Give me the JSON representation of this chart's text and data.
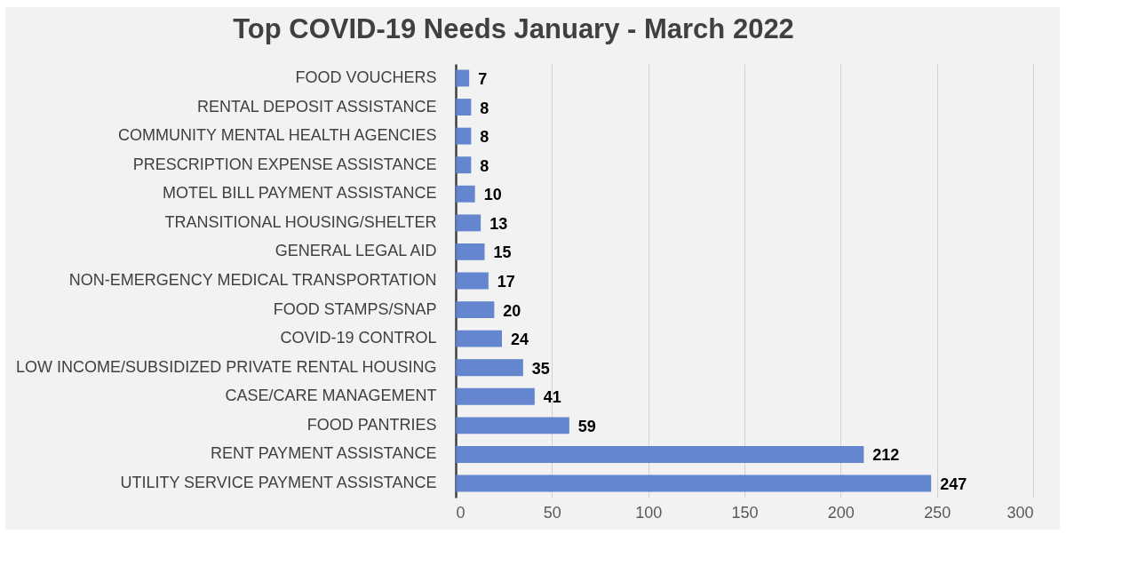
{
  "chart_data": {
    "type": "bar",
    "orientation": "horizontal",
    "title": "Top COVID-19 Needs January - March 2022",
    "categories": [
      "FOOD VOUCHERS",
      "RENTAL DEPOSIT ASSISTANCE",
      "COMMUNITY MENTAL HEALTH AGENCIES",
      "PRESCRIPTION EXPENSE ASSISTANCE",
      "MOTEL BILL PAYMENT ASSISTANCE",
      "TRANSITIONAL HOUSING/SHELTER",
      "GENERAL LEGAL AID",
      "NON-EMERGENCY MEDICAL TRANSPORTATION",
      "FOOD STAMPS/SNAP",
      "COVID-19 CONTROL",
      "LOW INCOME/SUBSIDIZED PRIVATE RENTAL HOUSING",
      "CASE/CARE MANAGEMENT",
      "FOOD PANTRIES",
      "RENT PAYMENT ASSISTANCE",
      "UTILITY SERVICE PAYMENT ASSISTANCE"
    ],
    "values": [
      7,
      8,
      8,
      8,
      10,
      13,
      15,
      17,
      20,
      24,
      35,
      41,
      59,
      212,
      247
    ],
    "color": "#5b80cc",
    "xlim": [
      0,
      300
    ],
    "xticks": [
      0,
      50,
      100,
      150,
      200,
      250,
      300
    ],
    "grid": "x",
    "data_labels": true
  }
}
